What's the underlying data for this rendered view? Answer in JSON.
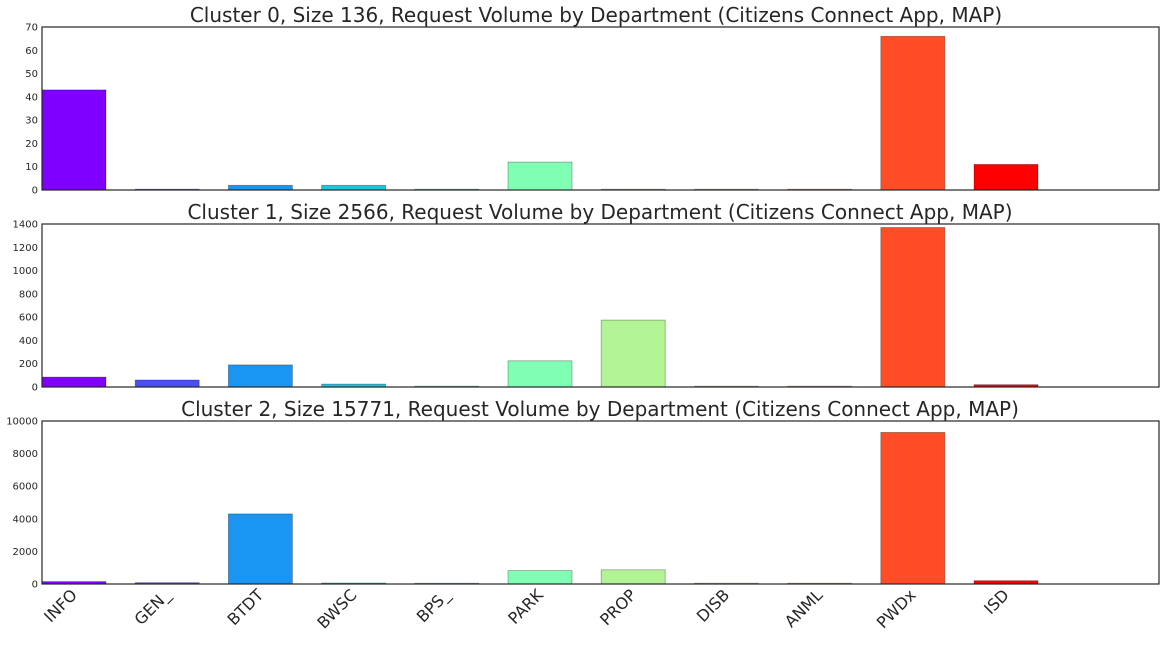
{
  "chart_data": [
    {
      "type": "bar",
      "title": "Cluster 0, Size 136, Request Volume by Department (Citizens Connect App, MAP)",
      "categories": [
        "INFO",
        "GEN_",
        "BTDT",
        "BWSC",
        "BPS_",
        "PARK",
        "PROP",
        "DISB",
        "ANML",
        "PWDx",
        "ISD"
      ],
      "values": [
        43,
        0,
        2,
        2,
        0,
        12,
        0,
        0,
        0,
        66,
        11
      ],
      "ylim": [
        0,
        70
      ],
      "yticks": [
        "0",
        "10",
        "20",
        "30",
        "40",
        "50",
        "60",
        "70"
      ],
      "xlabel": "",
      "ylabel": "",
      "grid": false
    },
    {
      "type": "bar",
      "title": "Cluster 1, Size 2566, Request Volume by Department (Citizens Connect App, MAP)",
      "categories": [
        "INFO",
        "GEN_",
        "BTDT",
        "BWSC",
        "BPS_",
        "PARK",
        "PROP",
        "DISB",
        "ANML",
        "PWDx",
        "ISD"
      ],
      "values": [
        85,
        60,
        190,
        25,
        3,
        225,
        575,
        3,
        3,
        1370,
        20
      ],
      "ylim": [
        0,
        1400
      ],
      "yticks": [
        "0",
        "200",
        "400",
        "600",
        "800",
        "1000",
        "1200",
        "1400"
      ],
      "xlabel": "",
      "ylabel": "",
      "grid": false
    },
    {
      "type": "bar",
      "title": "Cluster 2, Size 15771, Request Volume by Department (Citizens Connect App, MAP)",
      "categories": [
        "INFO",
        "GEN_",
        "BTDT",
        "BWSC",
        "BPS_",
        "PARK",
        "PROP",
        "DISB",
        "ANML",
        "PWDx",
        "ISD"
      ],
      "values": [
        150,
        80,
        4300,
        60,
        20,
        820,
        870,
        20,
        20,
        9300,
        200
      ],
      "ylim": [
        0,
        10000
      ],
      "yticks": [
        "0",
        "2000",
        "4000",
        "6000",
        "8000",
        "10000"
      ],
      "xlabel": "",
      "ylabel": "",
      "grid": false
    }
  ],
  "colors": [
    "#8000ff",
    "#4b4ef3",
    "#1996f3",
    "#1ac7dd",
    "#4df2ce",
    "#80ffb4",
    "#b2f396",
    "#e6c777",
    "#ff9a5a",
    "#ff4d27",
    "#ff0000"
  ]
}
